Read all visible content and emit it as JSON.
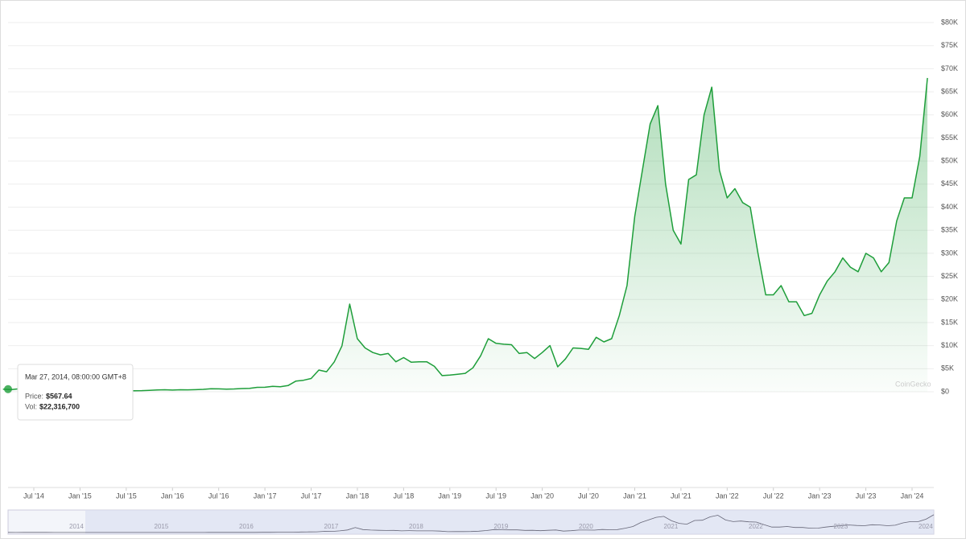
{
  "chart_data": {
    "type": "area",
    "x": [
      "2014-03",
      "2014-04",
      "2014-05",
      "2014-06",
      "2014-07",
      "2014-08",
      "2014-09",
      "2014-10",
      "2014-11",
      "2014-12",
      "2015-01",
      "2015-02",
      "2015-03",
      "2015-04",
      "2015-05",
      "2015-06",
      "2015-07",
      "2015-08",
      "2015-09",
      "2015-10",
      "2015-11",
      "2015-12",
      "2016-01",
      "2016-02",
      "2016-03",
      "2016-04",
      "2016-05",
      "2016-06",
      "2016-07",
      "2016-08",
      "2016-09",
      "2016-10",
      "2016-11",
      "2016-12",
      "2017-01",
      "2017-02",
      "2017-03",
      "2017-04",
      "2017-05",
      "2017-06",
      "2017-07",
      "2017-08",
      "2017-09",
      "2017-10",
      "2017-11",
      "2017-12",
      "2018-01",
      "2018-02",
      "2018-03",
      "2018-04",
      "2018-05",
      "2018-06",
      "2018-07",
      "2018-08",
      "2018-09",
      "2018-10",
      "2018-11",
      "2018-12",
      "2019-01",
      "2019-02",
      "2019-03",
      "2019-04",
      "2019-05",
      "2019-06",
      "2019-07",
      "2019-08",
      "2019-09",
      "2019-10",
      "2019-11",
      "2019-12",
      "2020-01",
      "2020-02",
      "2020-03",
      "2020-04",
      "2020-05",
      "2020-06",
      "2020-07",
      "2020-08",
      "2020-09",
      "2020-10",
      "2020-11",
      "2020-12",
      "2021-01",
      "2021-02",
      "2021-03",
      "2021-04",
      "2021-05",
      "2021-06",
      "2021-07",
      "2021-08",
      "2021-09",
      "2021-10",
      "2021-11",
      "2021-12",
      "2022-01",
      "2022-02",
      "2022-03",
      "2022-04",
      "2022-05",
      "2022-06",
      "2022-07",
      "2022-08",
      "2022-09",
      "2022-10",
      "2022-11",
      "2022-12",
      "2023-01",
      "2023-02",
      "2023-03",
      "2023-04",
      "2023-05",
      "2023-06",
      "2023-07",
      "2023-08",
      "2023-09",
      "2023-10",
      "2023-11",
      "2023-12",
      "2024-01",
      "2024-02",
      "2024-03"
    ],
    "values": [
      567.64,
      450,
      620,
      640,
      590,
      480,
      390,
      340,
      380,
      320,
      220,
      250,
      245,
      235,
      230,
      260,
      285,
      230,
      236,
      315,
      380,
      430,
      370,
      437,
      416,
      450,
      530,
      670,
      625,
      575,
      610,
      700,
      745,
      960,
      970,
      1190,
      1080,
      1350,
      2300,
      2500,
      2870,
      4700,
      4340,
      6470,
      9950,
      19000,
      11500,
      9500,
      8500,
      8000,
      8300,
      6500,
      7400,
      6400,
      6500,
      6500,
      5500,
      3500,
      3600,
      3800,
      4000,
      5200,
      7800,
      11500,
      10500,
      10300,
      10200,
      8300,
      8500,
      7200,
      8500,
      10000,
      5400,
      7100,
      9500,
      9400,
      9200,
      11800,
      10800,
      11500,
      16500,
      23000,
      38000,
      48000,
      58000,
      62000,
      45000,
      35000,
      32000,
      46000,
      47000,
      60000,
      66000,
      48000,
      42000,
      44000,
      41000,
      40000,
      30000,
      21000,
      21000,
      23000,
      19500,
      19500,
      16500,
      17000,
      21000,
      24000,
      26000,
      29000,
      27000,
      26000,
      30000,
      29000,
      26000,
      28000,
      37000,
      42000,
      42000,
      51000,
      68000
    ],
    "color": "#1e9e3a",
    "ylim": [
      0,
      80000
    ],
    "yticks": [
      {
        "value": 0,
        "label": "$0"
      },
      {
        "value": 5000,
        "label": "$5K"
      },
      {
        "value": 10000,
        "label": "$10K"
      },
      {
        "value": 15000,
        "label": "$15K"
      },
      {
        "value": 20000,
        "label": "$20K"
      },
      {
        "value": 25000,
        "label": "$25K"
      },
      {
        "value": 30000,
        "label": "$30K"
      },
      {
        "value": 35000,
        "label": "$35K"
      },
      {
        "value": 40000,
        "label": "$40K"
      },
      {
        "value": 45000,
        "label": "$45K"
      },
      {
        "value": 50000,
        "label": "$50K"
      },
      {
        "value": 55000,
        "label": "$55K"
      },
      {
        "value": 60000,
        "label": "$60K"
      },
      {
        "value": 65000,
        "label": "$65K"
      },
      {
        "value": 70000,
        "label": "$70K"
      },
      {
        "value": 75000,
        "label": "$75K"
      },
      {
        "value": 80000,
        "label": "$80K"
      }
    ],
    "xticks": [
      {
        "value": "2014-07",
        "label": "Jul '14"
      },
      {
        "value": "2015-01",
        "label": "Jan '15"
      },
      {
        "value": "2015-07",
        "label": "Jul '15"
      },
      {
        "value": "2016-01",
        "label": "Jan '16"
      },
      {
        "value": "2016-07",
        "label": "Jul '16"
      },
      {
        "value": "2017-01",
        "label": "Jan '17"
      },
      {
        "value": "2017-07",
        "label": "Jul '17"
      },
      {
        "value": "2018-01",
        "label": "Jan '18"
      },
      {
        "value": "2018-07",
        "label": "Jul '18"
      },
      {
        "value": "2019-01",
        "label": "Jan '19"
      },
      {
        "value": "2019-07",
        "label": "Jul '19"
      },
      {
        "value": "2020-01",
        "label": "Jan '20"
      },
      {
        "value": "2020-07",
        "label": "Jul '20"
      },
      {
        "value": "2021-01",
        "label": "Jan '21"
      },
      {
        "value": "2021-07",
        "label": "Jul '21"
      },
      {
        "value": "2022-01",
        "label": "Jan '22"
      },
      {
        "value": "2022-07",
        "label": "Jul '22"
      },
      {
        "value": "2023-01",
        "label": "Jan '23"
      },
      {
        "value": "2023-07",
        "label": "Jul '23"
      },
      {
        "value": "2024-01",
        "label": "Jan '24"
      }
    ],
    "grid": true,
    "watermark": "CoinGecko",
    "tooltip": {
      "date": "Mar 27, 2014, 08:00:00 GMT+8",
      "price_label": "Price:",
      "price": "$567.64",
      "volume_label": "Vol:",
      "volume": "$22,316,700"
    },
    "navigator_years": [
      2014,
      2015,
      2016,
      2017,
      2018,
      2019,
      2020,
      2021,
      2022,
      2023,
      2024
    ]
  }
}
